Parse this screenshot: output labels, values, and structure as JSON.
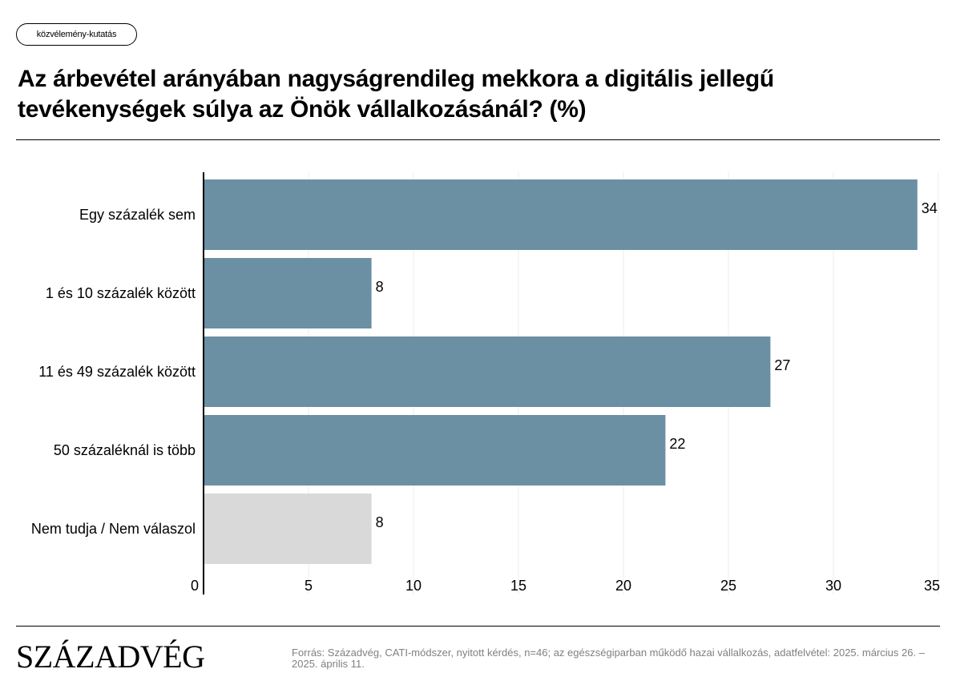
{
  "header": {
    "tag": "közvélemény-kutatás",
    "title": "Az árbevétel arányában nagyságrendileg mekkora a digitális jellegű tevékenységek súlya az Önök vállalkozásánál? (%)"
  },
  "footer": {
    "brand": "SZÁZADVÉG",
    "source": "Forrás: Századvég, CATI-módszer, nyitott kérdés, n=46; az egészségiparban működő hazai vállalkozás, adatfelvétel: 2025. március 26. – 2025. április 11."
  },
  "chart_data": {
    "type": "bar",
    "orientation": "horizontal",
    "categories": [
      "Egy százalék sem",
      "1 és 10 százalék között",
      "11 és 49 százalék között",
      "50 százaléknál is több",
      "Nem tudja / Nem válaszol"
    ],
    "values": [
      34,
      8,
      27,
      22,
      8
    ],
    "bar_colors": [
      "#6b8fa3",
      "#6b8fa3",
      "#6b8fa3",
      "#6b8fa3",
      "#d9d9d9"
    ],
    "xlim": [
      0,
      35
    ],
    "xticks": [
      0,
      5,
      10,
      15,
      20,
      25,
      30,
      35
    ],
    "grid": true,
    "data_labels": true
  }
}
